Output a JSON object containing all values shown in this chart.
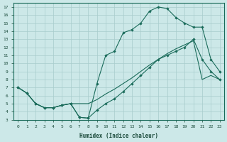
{
  "xlabel": "Humidex (Indice chaleur)",
  "bg_color": "#cce8e8",
  "grid_color": "#a8cccc",
  "line_color": "#1a6b5a",
  "xlim": [
    -0.5,
    23.5
  ],
  "ylim": [
    3,
    17.5
  ],
  "xticks": [
    0,
    1,
    2,
    3,
    4,
    5,
    6,
    7,
    8,
    9,
    10,
    11,
    12,
    13,
    14,
    15,
    16,
    17,
    18,
    19,
    20,
    21,
    22,
    23
  ],
  "yticks": [
    3,
    4,
    5,
    6,
    7,
    8,
    9,
    10,
    11,
    12,
    13,
    14,
    15,
    16,
    17
  ],
  "line1_x": [
    0,
    1,
    2,
    3,
    4,
    5,
    6,
    7,
    8,
    9,
    10,
    11,
    12,
    13,
    14,
    15,
    16,
    17,
    18,
    19,
    20,
    21,
    22,
    23
  ],
  "line1_y": [
    7.0,
    6.3,
    5.0,
    4.5,
    4.5,
    4.8,
    5.0,
    3.3,
    3.2,
    7.5,
    11.0,
    11.5,
    13.8,
    14.2,
    15.0,
    16.5,
    17.0,
    16.8,
    15.7,
    15.0,
    14.5,
    14.5,
    10.5,
    9.0
  ],
  "line2_x": [
    0,
    1,
    2,
    3,
    4,
    5,
    6,
    7,
    8,
    9,
    10,
    11,
    12,
    13,
    14,
    15,
    16,
    17,
    18,
    19,
    20,
    21,
    22,
    23
  ],
  "line2_y": [
    7.0,
    6.3,
    5.0,
    4.5,
    4.5,
    4.8,
    5.0,
    3.3,
    3.2,
    4.2,
    5.0,
    5.6,
    6.5,
    7.5,
    8.5,
    9.5,
    10.5,
    11.0,
    11.5,
    12.0,
    13.0,
    10.5,
    9.0,
    8.0
  ],
  "line3_x": [
    0,
    1,
    2,
    3,
    4,
    5,
    6,
    7,
    8,
    9,
    10,
    11,
    12,
    13,
    14,
    15,
    16,
    17,
    18,
    19,
    20,
    21,
    22,
    23
  ],
  "line3_y": [
    7.0,
    6.3,
    5.0,
    4.5,
    4.5,
    4.8,
    5.0,
    5.0,
    5.0,
    5.5,
    6.2,
    6.8,
    7.5,
    8.2,
    9.0,
    9.8,
    10.5,
    11.2,
    11.8,
    12.3,
    12.8,
    8.0,
    8.5,
    8.0
  ]
}
